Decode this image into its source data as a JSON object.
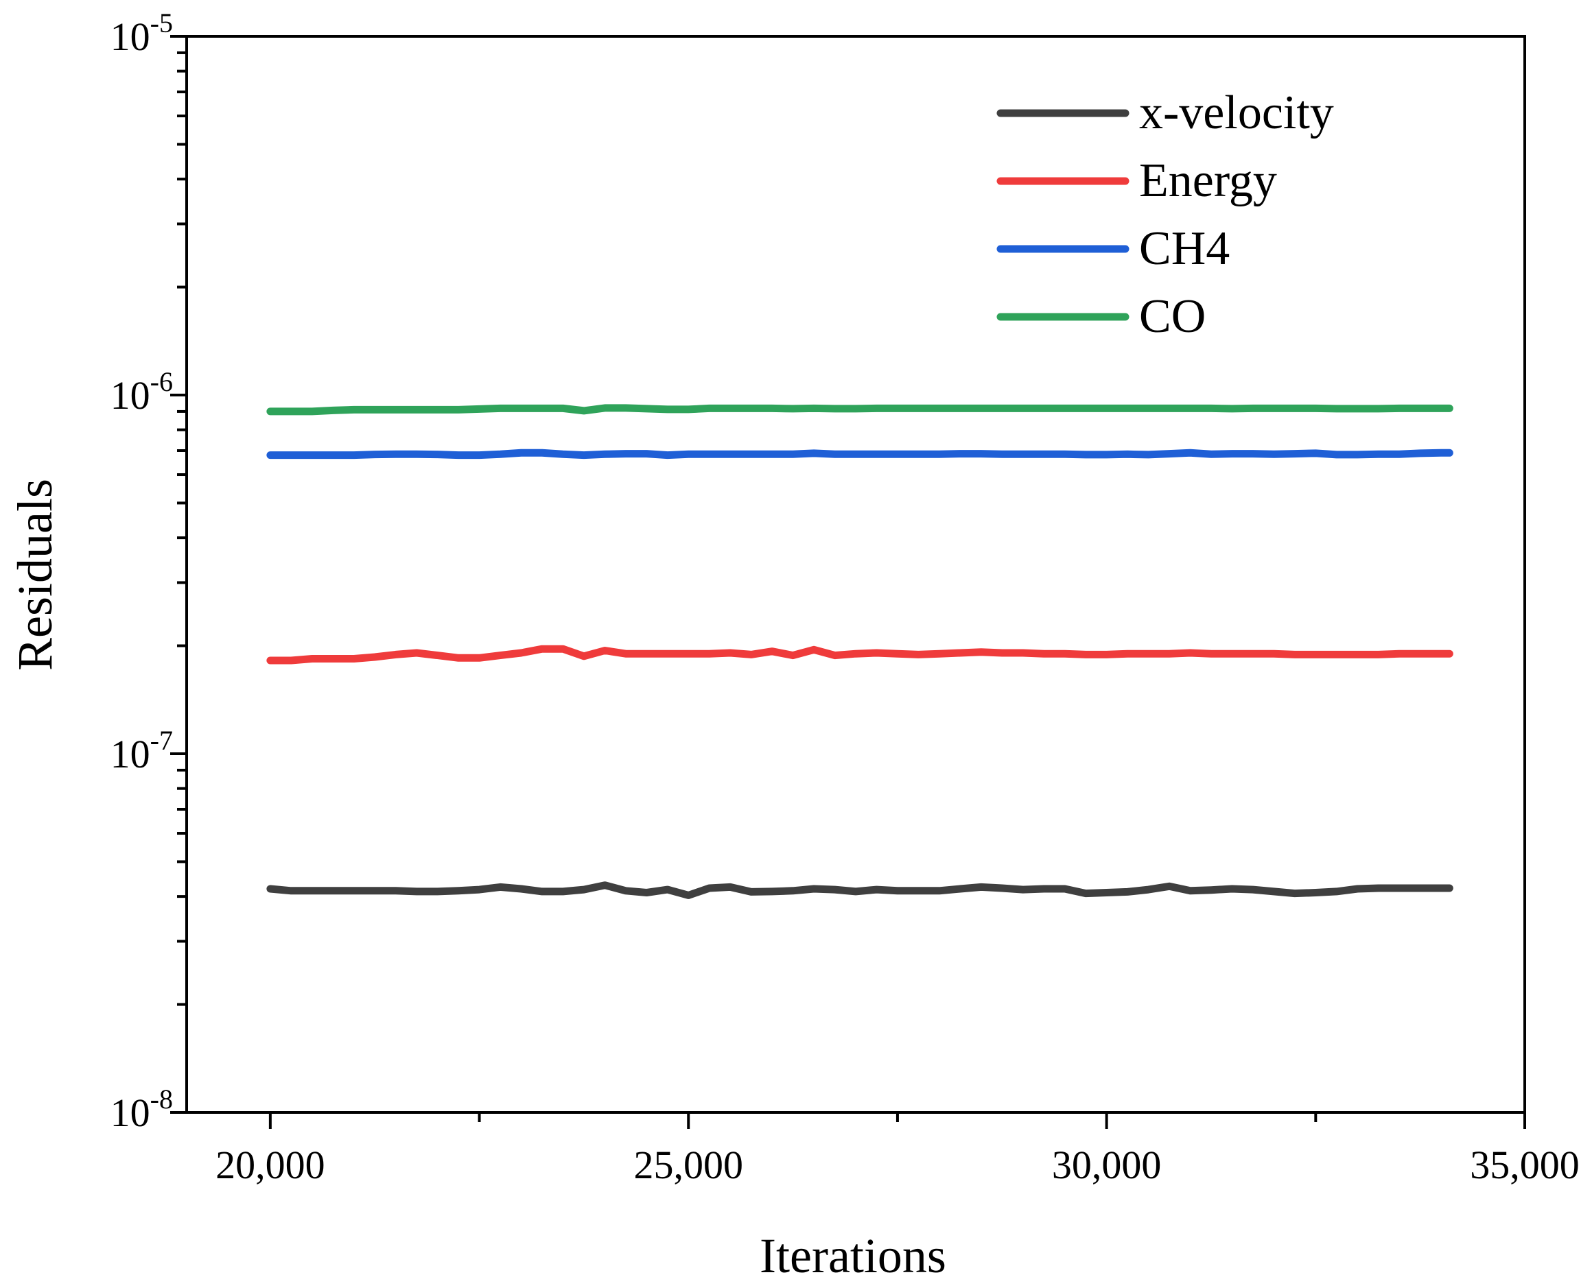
{
  "chart_data": {
    "type": "line",
    "title": "",
    "xlabel": "Iterations",
    "ylabel": "Residuals",
    "xlim": [
      19000,
      35000
    ],
    "ylim": [
      1e-08,
      1e-05
    ],
    "yscale": "log",
    "x_ticks": [
      {
        "value": 20000,
        "label": "20,000"
      },
      {
        "value": 25000,
        "label": "25,000"
      },
      {
        "value": 30000,
        "label": "30,000"
      },
      {
        "value": 35000,
        "label": "35,000"
      }
    ],
    "y_ticks": [
      {
        "value": 1e-08,
        "base": "10",
        "exp": "-8"
      },
      {
        "value": 1e-07,
        "base": "10",
        "exp": "-7"
      },
      {
        "value": 1e-06,
        "base": "10",
        "exp": "-6"
      },
      {
        "value": 1e-05,
        "base": "10",
        "exp": "-5"
      }
    ],
    "x": [
      20000,
      20250,
      20500,
      20750,
      21000,
      21250,
      21500,
      21750,
      22000,
      22250,
      22500,
      22750,
      23000,
      23250,
      23500,
      23750,
      24000,
      24250,
      24500,
      24750,
      25000,
      25250,
      25500,
      25750,
      26000,
      26250,
      26500,
      26750,
      27000,
      27250,
      27500,
      27750,
      28000,
      28250,
      28500,
      28750,
      29000,
      29250,
      29500,
      29750,
      30000,
      30250,
      30500,
      30750,
      31000,
      31250,
      31500,
      31750,
      32000,
      32250,
      32500,
      32750,
      33000,
      33250,
      33500,
      33750,
      34000,
      34100
    ],
    "legend_position": "top-right",
    "series": [
      {
        "name": "x-velocity",
        "color": "#3f3f3f",
        "values": [
          4.2e-08,
          4.15e-08,
          4.15e-08,
          4.15e-08,
          4.15e-08,
          4.15e-08,
          4.15e-08,
          4.13e-08,
          4.13e-08,
          4.15e-08,
          4.18e-08,
          4.25e-08,
          4.2e-08,
          4.13e-08,
          4.13e-08,
          4.18e-08,
          4.3e-08,
          4.15e-08,
          4.1e-08,
          4.18e-08,
          4.03e-08,
          4.22e-08,
          4.25e-08,
          4.12e-08,
          4.13e-08,
          4.15e-08,
          4.2e-08,
          4.18e-08,
          4.13e-08,
          4.18e-08,
          4.15e-08,
          4.15e-08,
          4.15e-08,
          4.2e-08,
          4.25e-08,
          4.22e-08,
          4.18e-08,
          4.2e-08,
          4.2e-08,
          4.08e-08,
          4.1e-08,
          4.12e-08,
          4.18e-08,
          4.27e-08,
          4.15e-08,
          4.17e-08,
          4.2e-08,
          4.18e-08,
          4.13e-08,
          4.08e-08,
          4.1e-08,
          4.13e-08,
          4.2e-08,
          4.22e-08,
          4.22e-08,
          4.22e-08,
          4.22e-08,
          4.22e-08
        ]
      },
      {
        "name": "Energy",
        "color": "#ef3b3b",
        "values": [
          1.82e-07,
          1.82e-07,
          1.84e-07,
          1.84e-07,
          1.84e-07,
          1.86e-07,
          1.89e-07,
          1.91e-07,
          1.88e-07,
          1.85e-07,
          1.85e-07,
          1.88e-07,
          1.91e-07,
          1.96e-07,
          1.96e-07,
          1.87e-07,
          1.94e-07,
          1.9e-07,
          1.9e-07,
          1.9e-07,
          1.9e-07,
          1.9e-07,
          1.91e-07,
          1.89e-07,
          1.93e-07,
          1.88e-07,
          1.95e-07,
          1.88e-07,
          1.9e-07,
          1.91e-07,
          1.9e-07,
          1.89e-07,
          1.9e-07,
          1.91e-07,
          1.92e-07,
          1.91e-07,
          1.91e-07,
          1.9e-07,
          1.9e-07,
          1.89e-07,
          1.89e-07,
          1.9e-07,
          1.9e-07,
          1.9e-07,
          1.91e-07,
          1.9e-07,
          1.9e-07,
          1.9e-07,
          1.9e-07,
          1.89e-07,
          1.89e-07,
          1.89e-07,
          1.89e-07,
          1.89e-07,
          1.9e-07,
          1.9e-07,
          1.9e-07,
          1.9e-07
        ]
      },
      {
        "name": "CH4",
        "color": "#1f5fd6",
        "values": [
          6.8e-07,
          6.8e-07,
          6.8e-07,
          6.8e-07,
          6.8e-07,
          6.83e-07,
          6.84e-07,
          6.84e-07,
          6.83e-07,
          6.8e-07,
          6.8e-07,
          6.84e-07,
          6.9e-07,
          6.9e-07,
          6.84e-07,
          6.8e-07,
          6.84e-07,
          6.86e-07,
          6.86e-07,
          6.8e-07,
          6.84e-07,
          6.84e-07,
          6.84e-07,
          6.84e-07,
          6.84e-07,
          6.84e-07,
          6.88e-07,
          6.84e-07,
          6.84e-07,
          6.84e-07,
          6.84e-07,
          6.84e-07,
          6.84e-07,
          6.86e-07,
          6.86e-07,
          6.84e-07,
          6.84e-07,
          6.84e-07,
          6.84e-07,
          6.82e-07,
          6.82e-07,
          6.84e-07,
          6.82e-07,
          6.86e-07,
          6.9e-07,
          6.84e-07,
          6.86e-07,
          6.86e-07,
          6.84e-07,
          6.86e-07,
          6.88e-07,
          6.82e-07,
          6.82e-07,
          6.84e-07,
          6.84e-07,
          6.88e-07,
          6.9e-07,
          6.9e-07
        ]
      },
      {
        "name": "CO",
        "color": "#2fa35a",
        "values": [
          9e-07,
          9e-07,
          9e-07,
          9.06e-07,
          9.1e-07,
          9.1e-07,
          9.1e-07,
          9.1e-07,
          9.1e-07,
          9.1e-07,
          9.14e-07,
          9.18e-07,
          9.18e-07,
          9.18e-07,
          9.18e-07,
          9.04e-07,
          9.2e-07,
          9.2e-07,
          9.16e-07,
          9.12e-07,
          9.12e-07,
          9.18e-07,
          9.18e-07,
          9.18e-07,
          9.18e-07,
          9.16e-07,
          9.18e-07,
          9.16e-07,
          9.16e-07,
          9.18e-07,
          9.18e-07,
          9.18e-07,
          9.18e-07,
          9.18e-07,
          9.18e-07,
          9.18e-07,
          9.18e-07,
          9.18e-07,
          9.18e-07,
          9.18e-07,
          9.18e-07,
          9.18e-07,
          9.18e-07,
          9.18e-07,
          9.18e-07,
          9.18e-07,
          9.16e-07,
          9.18e-07,
          9.18e-07,
          9.18e-07,
          9.18e-07,
          9.16e-07,
          9.16e-07,
          9.16e-07,
          9.18e-07,
          9.18e-07,
          9.18e-07,
          9.18e-07
        ]
      }
    ]
  }
}
